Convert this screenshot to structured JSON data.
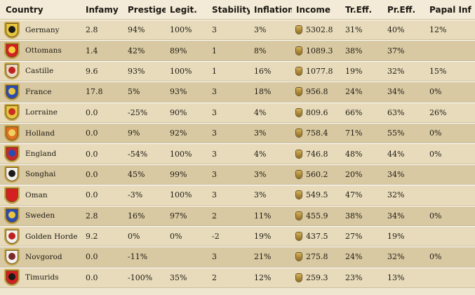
{
  "headers": {
    "country": "Country",
    "infamy": "Infamy",
    "prestige": "Prestige",
    "legit": "Legit.",
    "stability": "Stability",
    "inflation": "Inflation",
    "income": "Income",
    "tr_eff": "Tr.Eff.",
    "pr_eff": "Pr.Eff.",
    "papal_inf": "Papal Inf"
  },
  "rows": [
    {
      "country": "Germany",
      "infamy": "2.8",
      "prestige": "94%",
      "legit": "100%",
      "stability": "3",
      "inflation": "3%",
      "income": "5302.8",
      "tr_eff": "31%",
      "pr_eff": "40%",
      "papal_inf": "12%",
      "flag_bg": "#e8c640",
      "flag_mark": "#1a1a1a"
    },
    {
      "country": "Ottomans",
      "infamy": "1.4",
      "prestige": "42%",
      "legit": "89%",
      "stability": "1",
      "inflation": "8%",
      "income": "1089.3",
      "tr_eff": "38%",
      "pr_eff": "37%",
      "papal_inf": "",
      "flag_bg": "#d42020",
      "flag_mark": "#f5d040"
    },
    {
      "country": "Castille",
      "infamy": "9.6",
      "prestige": "93%",
      "legit": "100%",
      "stability": "1",
      "inflation": "16%",
      "income": "1077.8",
      "tr_eff": "19%",
      "pr_eff": "32%",
      "papal_inf": "15%",
      "flag_bg": "#e8d8c0",
      "flag_mark": "#c02020"
    },
    {
      "country": "France",
      "infamy": "17.8",
      "prestige": "5%",
      "legit": "93%",
      "stability": "3",
      "inflation": "18%",
      "income": "956.8",
      "tr_eff": "24%",
      "pr_eff": "34%",
      "papal_inf": "0%",
      "flag_bg": "#2a4cb0",
      "flag_mark": "#e8c640"
    },
    {
      "country": "Lorraine",
      "infamy": "0.0",
      "prestige": "-25%",
      "legit": "90%",
      "stability": "3",
      "inflation": "4%",
      "income": "809.6",
      "tr_eff": "66%",
      "pr_eff": "63%",
      "papal_inf": "26%",
      "flag_bg": "#e8c640",
      "flag_mark": "#c83020"
    },
    {
      "country": "Holland",
      "infamy": "0.0",
      "prestige": "9%",
      "legit": "92%",
      "stability": "3",
      "inflation": "3%",
      "income": "758.4",
      "tr_eff": "71%",
      "pr_eff": "55%",
      "papal_inf": "0%",
      "flag_bg": "#e07020",
      "flag_mark": "#f0d060"
    },
    {
      "country": "England",
      "infamy": "0.0",
      "prestige": "-54%",
      "legit": "100%",
      "stability": "3",
      "inflation": "4%",
      "income": "746.8",
      "tr_eff": "48%",
      "pr_eff": "44%",
      "papal_inf": "0%",
      "flag_bg": "#c82828",
      "flag_mark": "#2a4cb0"
    },
    {
      "country": "Songhai",
      "infamy": "0.0",
      "prestige": "45%",
      "legit": "99%",
      "stability": "3",
      "inflation": "3%",
      "income": "560.2",
      "tr_eff": "20%",
      "pr_eff": "34%",
      "papal_inf": "",
      "flag_bg": "#f2f0ea",
      "flag_mark": "#1a1a1a"
    },
    {
      "country": "Oman",
      "infamy": "0.0",
      "prestige": "-3%",
      "legit": "100%",
      "stability": "3",
      "inflation": "3%",
      "income": "549.5",
      "tr_eff": "47%",
      "pr_eff": "32%",
      "papal_inf": "",
      "flag_bg": "#d42020",
      "flag_mark": "#d42020"
    },
    {
      "country": "Sweden",
      "infamy": "2.8",
      "prestige": "16%",
      "legit": "97%",
      "stability": "2",
      "inflation": "11%",
      "income": "455.9",
      "tr_eff": "38%",
      "pr_eff": "34%",
      "papal_inf": "0%",
      "flag_bg": "#2a4cb0",
      "flag_mark": "#e8c640"
    },
    {
      "country": "Golden Horde",
      "infamy": "9.2",
      "prestige": "0%",
      "legit": "0%",
      "stability": "-2",
      "inflation": "19%",
      "income": "437.5",
      "tr_eff": "27%",
      "pr_eff": "19%",
      "papal_inf": "",
      "flag_bg": "#f2f0ea",
      "flag_mark": "#c02020"
    },
    {
      "country": "Novgorod",
      "infamy": "0.0",
      "prestige": "-11%",
      "legit": "",
      "stability": "3",
      "inflation": "21%",
      "income": "275.8",
      "tr_eff": "24%",
      "pr_eff": "32%",
      "papal_inf": "0%",
      "flag_bg": "#f2f0ea",
      "flag_mark": "#7a2a2a"
    },
    {
      "country": "Timurids",
      "infamy": "0.0",
      "prestige": "-100%",
      "legit": "35%",
      "stability": "2",
      "inflation": "12%",
      "income": "259.3",
      "tr_eff": "23%",
      "pr_eff": "13%",
      "papal_inf": "",
      "flag_bg": "#d42020",
      "flag_mark": "#1a1a1a"
    }
  ]
}
